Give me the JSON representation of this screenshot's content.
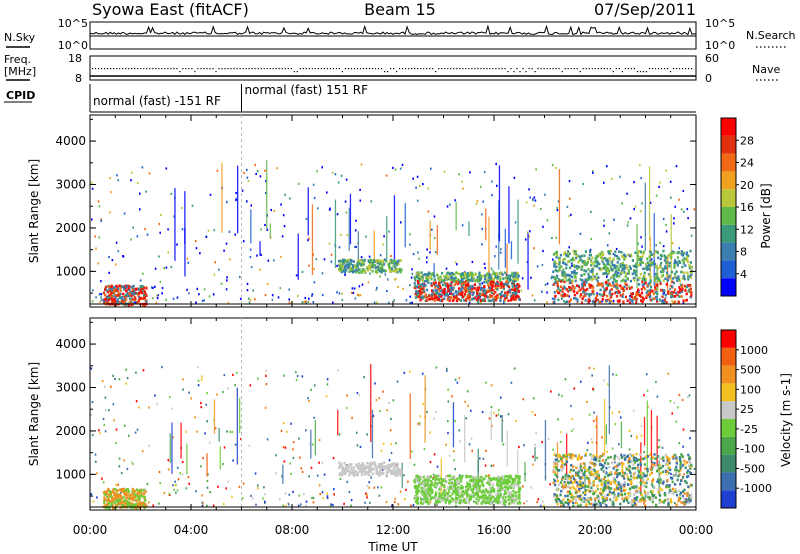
{
  "header": {
    "site": "Syowa East (fitACF)",
    "beam": "Beam 15",
    "date": "07/Sep/2011"
  },
  "side_labels": {
    "nsky": "N.Sky",
    "nsearch": "N.Search",
    "freq": "Freq.",
    "mhz": "[MHz]",
    "nave": "Nave",
    "cpid": "CPID"
  },
  "mini_axes": {
    "nsky_ticks": [
      "10^5",
      "10^0"
    ],
    "nsearch_ticks": [
      "10^5",
      "10^0"
    ],
    "freq_ticks": [
      "18",
      "8"
    ],
    "nave_ticks": [
      "60",
      "0"
    ]
  },
  "cpid_segments": [
    {
      "label": "normal (fast) -151 RF",
      "start_hour": 0,
      "end_hour": 6
    },
    {
      "label": "normal (fast) 151 RF",
      "start_hour": 6,
      "end_hour": 24
    }
  ],
  "chart_data": [
    {
      "type": "heatmap",
      "panel": "power",
      "ylabel": "Slant Range [km]",
      "xlabel": "",
      "xlim_hours": [
        0,
        24
      ],
      "ylim": [
        180,
        4600
      ],
      "y_ticks": [
        "1000",
        "2000",
        "3000",
        "4000"
      ],
      "x_ticks": [
        "00:00",
        "04:00",
        "08:00",
        "12:00",
        "16:00",
        "20:00",
        "00:00"
      ],
      "colorbar": {
        "label": "Power [dB]",
        "ticks": [
          "4",
          "8",
          "12",
          "16",
          "20",
          "24",
          "28"
        ],
        "colors": [
          "#0000ff",
          "#1e5fd6",
          "#3b7fb0",
          "#3a9a7a",
          "#5fb848",
          "#b8c83a",
          "#f2a020",
          "#f06a16",
          "#e03010",
          "#ff0000"
        ]
      },
      "features": [
        {
          "name": "early-cluster",
          "hours": [
            0.6,
            2.2
          ],
          "range_km": [
            250,
            700
          ]
        },
        {
          "name": "echo-band-10-12",
          "hours": [
            9.8,
            12.3
          ],
          "range_km": [
            1000,
            1300
          ]
        },
        {
          "name": "echo-band-13-17",
          "hours": [
            12.8,
            17.0
          ],
          "range_km": [
            400,
            1000
          ]
        },
        {
          "name": "echo-band-18-21",
          "hours": [
            18.5,
            21.0
          ],
          "range_km": [
            300,
            1500
          ]
        },
        {
          "name": "echo-band-21-24",
          "hours": [
            21.0,
            23.8
          ],
          "range_km": [
            300,
            1500
          ]
        }
      ]
    },
    {
      "type": "heatmap",
      "panel": "velocity",
      "ylabel": "Slant Range [km]",
      "xlabel": "Time UT",
      "xlim_hours": [
        0,
        24
      ],
      "ylim": [
        180,
        4600
      ],
      "y_ticks": [
        "1000",
        "2000",
        "3000",
        "4000"
      ],
      "x_ticks": [
        "00:00",
        "04:00",
        "08:00",
        "12:00",
        "16:00",
        "20:00",
        "00:00"
      ],
      "colorbar": {
        "label": "Velocity [m s-1]",
        "ticks": [
          "1000",
          "500",
          "100",
          "25",
          "-25",
          "-100",
          "-500",
          "-1000"
        ],
        "colors": [
          "#1e3fcf",
          "#3b6fb0",
          "#3b8a6a",
          "#4aa84a",
          "#6ccc3a",
          "#c8c8c8",
          "#f2c020",
          "#f09020",
          "#f06010",
          "#ff0000"
        ]
      }
    }
  ]
}
